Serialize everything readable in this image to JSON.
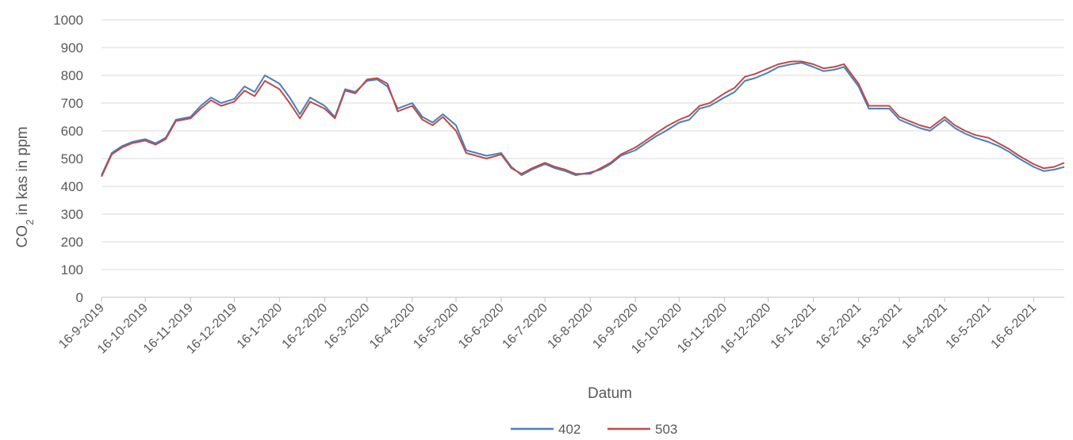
{
  "chart_data": {
    "type": "line",
    "xlabel": "Datum",
    "ylabel_main": "CO",
    "ylabel_sub": "2",
    "ylabel_rest": " in kas in ppm",
    "ylim": [
      0,
      1000
    ],
    "yticks": [
      0,
      100,
      200,
      300,
      400,
      500,
      600,
      700,
      800,
      900,
      1000
    ],
    "x_start": "2019-09-16",
    "x_end": "2021-07-07",
    "xtick_labels": [
      "16-9-2019",
      "16-10-2019",
      "16-11-2019",
      "16-12-2019",
      "16-1-2020",
      "16-2-2020",
      "16-3-2020",
      "16-4-2020",
      "16-5-2020",
      "16-6-2020",
      "16-7-2020",
      "16-8-2020",
      "16-9-2020",
      "16-10-2020",
      "16-11-2020",
      "16-12-2020",
      "16-1-2021",
      "16-2-2021",
      "16-3-2021",
      "16-4-2021",
      "16-5-2021",
      "16-6-2021"
    ],
    "xtick_dates": [
      "2019-09-16",
      "2019-10-16",
      "2019-11-16",
      "2019-12-16",
      "2020-01-16",
      "2020-02-16",
      "2020-03-16",
      "2020-04-16",
      "2020-05-16",
      "2020-06-16",
      "2020-07-16",
      "2020-08-16",
      "2020-09-16",
      "2020-10-16",
      "2020-11-16",
      "2020-12-16",
      "2021-01-16",
      "2021-02-16",
      "2021-03-16",
      "2021-04-16",
      "2021-05-16",
      "2021-06-16"
    ],
    "grid": true,
    "legend_position": "bottom",
    "series": [
      {
        "name": "402",
        "color": "#4a7ebb",
        "points": [
          [
            "2019-09-16",
            440
          ],
          [
            "2019-09-23",
            520
          ],
          [
            "2019-09-30",
            545
          ],
          [
            "2019-10-07",
            560
          ],
          [
            "2019-10-16",
            570
          ],
          [
            "2019-10-23",
            555
          ],
          [
            "2019-10-30",
            575
          ],
          [
            "2019-11-06",
            640
          ],
          [
            "2019-11-16",
            650
          ],
          [
            "2019-11-23",
            690
          ],
          [
            "2019-11-30",
            720
          ],
          [
            "2019-12-07",
            700
          ],
          [
            "2019-12-16",
            715
          ],
          [
            "2019-12-23",
            760
          ],
          [
            "2019-12-30",
            740
          ],
          [
            "2020-01-06",
            800
          ],
          [
            "2020-01-16",
            770
          ],
          [
            "2020-01-23",
            720
          ],
          [
            "2020-01-30",
            660
          ],
          [
            "2020-02-06",
            720
          ],
          [
            "2020-02-16",
            690
          ],
          [
            "2020-02-23",
            650
          ],
          [
            "2020-03-01",
            750
          ],
          [
            "2020-03-08",
            740
          ],
          [
            "2020-03-16",
            780
          ],
          [
            "2020-03-23",
            785
          ],
          [
            "2020-03-30",
            760
          ],
          [
            "2020-04-06",
            680
          ],
          [
            "2020-04-16",
            700
          ],
          [
            "2020-04-23",
            650
          ],
          [
            "2020-04-30",
            630
          ],
          [
            "2020-05-07",
            660
          ],
          [
            "2020-05-16",
            620
          ],
          [
            "2020-05-23",
            530
          ],
          [
            "2020-05-30",
            520
          ],
          [
            "2020-06-06",
            510
          ],
          [
            "2020-06-16",
            520
          ],
          [
            "2020-06-23",
            470
          ],
          [
            "2020-06-30",
            440
          ],
          [
            "2020-07-07",
            460
          ],
          [
            "2020-07-16",
            480
          ],
          [
            "2020-07-23",
            465
          ],
          [
            "2020-07-30",
            455
          ],
          [
            "2020-08-06",
            440
          ],
          [
            "2020-08-16",
            450
          ],
          [
            "2020-08-23",
            460
          ],
          [
            "2020-08-30",
            480
          ],
          [
            "2020-09-06",
            510
          ],
          [
            "2020-09-16",
            530
          ],
          [
            "2020-09-23",
            555
          ],
          [
            "2020-09-30",
            580
          ],
          [
            "2020-10-07",
            600
          ],
          [
            "2020-10-16",
            630
          ],
          [
            "2020-10-23",
            640
          ],
          [
            "2020-10-30",
            680
          ],
          [
            "2020-11-06",
            690
          ],
          [
            "2020-11-16",
            720
          ],
          [
            "2020-11-23",
            740
          ],
          [
            "2020-11-30",
            780
          ],
          [
            "2020-12-07",
            790
          ],
          [
            "2020-12-16",
            810
          ],
          [
            "2020-12-23",
            830
          ],
          [
            "2021-01-01",
            840
          ],
          [
            "2021-01-08",
            845
          ],
          [
            "2021-01-16",
            830
          ],
          [
            "2021-01-23",
            815
          ],
          [
            "2021-01-30",
            820
          ],
          [
            "2021-02-06",
            830
          ],
          [
            "2021-02-16",
            760
          ],
          [
            "2021-02-23",
            680
          ],
          [
            "2021-03-02",
            680
          ],
          [
            "2021-03-09",
            680
          ],
          [
            "2021-03-16",
            640
          ],
          [
            "2021-03-23",
            625
          ],
          [
            "2021-03-30",
            610
          ],
          [
            "2021-04-06",
            600
          ],
          [
            "2021-04-16",
            640
          ],
          [
            "2021-04-23",
            610
          ],
          [
            "2021-04-30",
            590
          ],
          [
            "2021-05-07",
            575
          ],
          [
            "2021-05-16",
            560
          ],
          [
            "2021-05-23",
            545
          ],
          [
            "2021-05-30",
            525
          ],
          [
            "2021-06-06",
            500
          ],
          [
            "2021-06-16",
            470
          ],
          [
            "2021-06-23",
            455
          ],
          [
            "2021-06-30",
            460
          ],
          [
            "2021-07-07",
            470
          ]
        ]
      },
      {
        "name": "503",
        "color": "#be4b48",
        "points": [
          [
            "2019-09-16",
            435
          ],
          [
            "2019-09-23",
            515
          ],
          [
            "2019-09-30",
            540
          ],
          [
            "2019-10-07",
            555
          ],
          [
            "2019-10-16",
            565
          ],
          [
            "2019-10-23",
            550
          ],
          [
            "2019-10-30",
            570
          ],
          [
            "2019-11-06",
            635
          ],
          [
            "2019-11-16",
            645
          ],
          [
            "2019-11-23",
            680
          ],
          [
            "2019-11-30",
            710
          ],
          [
            "2019-12-07",
            690
          ],
          [
            "2019-12-16",
            705
          ],
          [
            "2019-12-23",
            745
          ],
          [
            "2019-12-30",
            725
          ],
          [
            "2020-01-06",
            780
          ],
          [
            "2020-01-16",
            750
          ],
          [
            "2020-01-23",
            700
          ],
          [
            "2020-01-30",
            645
          ],
          [
            "2020-02-06",
            705
          ],
          [
            "2020-02-16",
            680
          ],
          [
            "2020-02-23",
            645
          ],
          [
            "2020-03-01",
            745
          ],
          [
            "2020-03-08",
            735
          ],
          [
            "2020-03-16",
            785
          ],
          [
            "2020-03-23",
            790
          ],
          [
            "2020-03-30",
            770
          ],
          [
            "2020-04-06",
            670
          ],
          [
            "2020-04-16",
            690
          ],
          [
            "2020-04-23",
            640
          ],
          [
            "2020-04-30",
            620
          ],
          [
            "2020-05-07",
            650
          ],
          [
            "2020-05-16",
            600
          ],
          [
            "2020-05-23",
            520
          ],
          [
            "2020-05-30",
            510
          ],
          [
            "2020-06-06",
            500
          ],
          [
            "2020-06-16",
            515
          ],
          [
            "2020-06-23",
            465
          ],
          [
            "2020-06-30",
            445
          ],
          [
            "2020-07-07",
            465
          ],
          [
            "2020-07-16",
            485
          ],
          [
            "2020-07-23",
            470
          ],
          [
            "2020-07-30",
            460
          ],
          [
            "2020-08-06",
            445
          ],
          [
            "2020-08-16",
            445
          ],
          [
            "2020-08-23",
            465
          ],
          [
            "2020-08-30",
            485
          ],
          [
            "2020-09-06",
            515
          ],
          [
            "2020-09-16",
            540
          ],
          [
            "2020-09-23",
            565
          ],
          [
            "2020-09-30",
            590
          ],
          [
            "2020-10-07",
            615
          ],
          [
            "2020-10-16",
            640
          ],
          [
            "2020-10-23",
            655
          ],
          [
            "2020-10-30",
            690
          ],
          [
            "2020-11-06",
            700
          ],
          [
            "2020-11-16",
            735
          ],
          [
            "2020-11-23",
            755
          ],
          [
            "2020-11-30",
            795
          ],
          [
            "2020-12-07",
            805
          ],
          [
            "2020-12-16",
            825
          ],
          [
            "2020-12-23",
            840
          ],
          [
            "2021-01-01",
            850
          ],
          [
            "2021-01-08",
            850
          ],
          [
            "2021-01-16",
            840
          ],
          [
            "2021-01-23",
            825
          ],
          [
            "2021-01-30",
            830
          ],
          [
            "2021-02-06",
            840
          ],
          [
            "2021-02-16",
            770
          ],
          [
            "2021-02-23",
            690
          ],
          [
            "2021-03-02",
            690
          ],
          [
            "2021-03-09",
            690
          ],
          [
            "2021-03-16",
            650
          ],
          [
            "2021-03-23",
            635
          ],
          [
            "2021-03-30",
            620
          ],
          [
            "2021-04-06",
            610
          ],
          [
            "2021-04-16",
            650
          ],
          [
            "2021-04-23",
            620
          ],
          [
            "2021-04-30",
            600
          ],
          [
            "2021-05-07",
            585
          ],
          [
            "2021-05-16",
            575
          ],
          [
            "2021-05-23",
            555
          ],
          [
            "2021-05-30",
            535
          ],
          [
            "2021-06-06",
            510
          ],
          [
            "2021-06-16",
            480
          ],
          [
            "2021-06-23",
            465
          ],
          [
            "2021-06-30",
            470
          ],
          [
            "2021-07-07",
            485
          ]
        ]
      }
    ]
  }
}
